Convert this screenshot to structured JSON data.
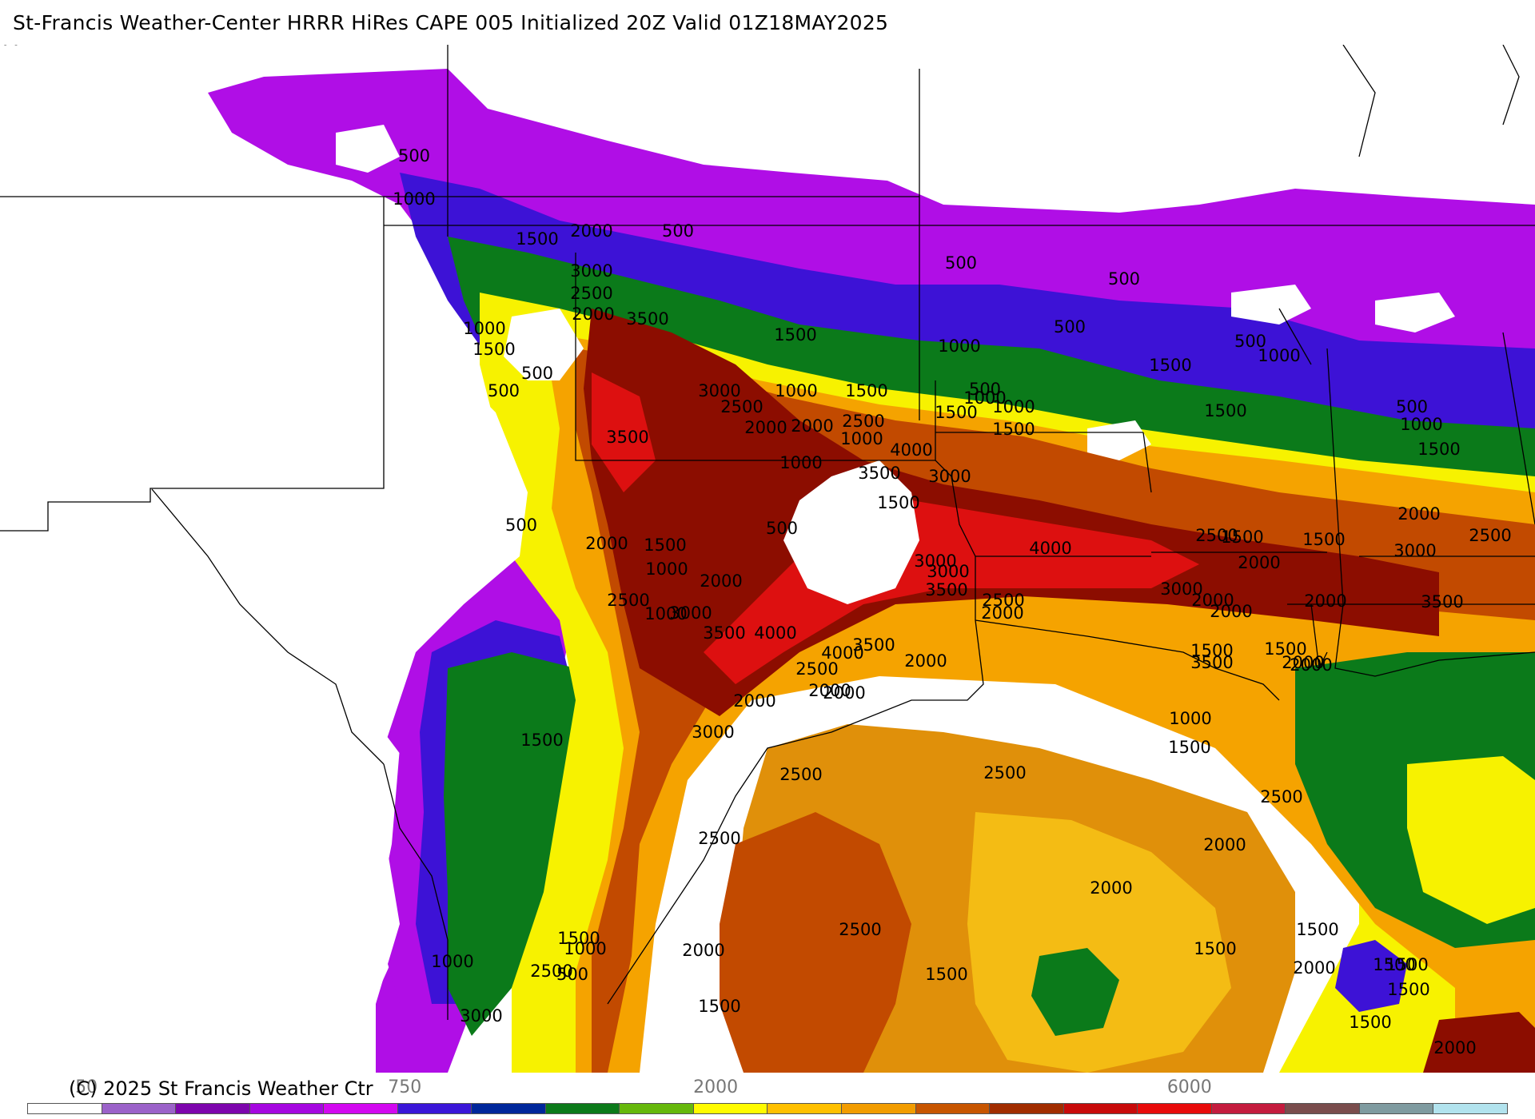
{
  "header": {
    "title": "St-Francis Weather-Center HRRR HiRes CAPE  005 Initialized  20Z Valid 01Z18MAY2025"
  },
  "footer": {
    "credit": "(C) 2025 St Francis Weather Ctr"
  },
  "colorbar": {
    "tick_labels": [
      "50",
      "750",
      "2000",
      "6000"
    ],
    "colors": [
      "#ffffff",
      "#9b62c9",
      "#7d05ad",
      "#a507e0",
      "#d208f0",
      "#3a16d8",
      "#00279b",
      "#0b7a1a",
      "#66b80c",
      "#fffb00",
      "#ffc000",
      "#f29c00",
      "#c75500",
      "#a12d00",
      "#c80a0a",
      "#e80a0a",
      "#c41c3e",
      "#7a4d4d",
      "#7f9ba0",
      "#b2e3ee"
    ]
  },
  "map": {
    "colors": {
      "c500": "#b00ee6",
      "c1000": "#3d12d6",
      "c1500": "#0b7a1a",
      "c2000": "#f7f200",
      "c2500": "#f5a300",
      "c3000": "#c24a00",
      "c3500": "#8c0d00",
      "c4000": "#dd1010",
      "ocean": "#e0900a",
      "light": "#f4bc14"
    },
    "contour_labels": [
      "500",
      "1000",
      "1500",
      "2000",
      "500",
      "3000",
      "2500",
      "2000",
      "3500",
      "1000",
      "1500",
      "500",
      "500",
      "3000",
      "2500",
      "2000",
      "2000",
      "2500",
      "1000",
      "1500",
      "1000",
      "1500",
      "500",
      "1000",
      "3500",
      "4000",
      "3500",
      "3000",
      "1500",
      "500",
      "1000",
      "1500",
      "1000",
      "500",
      "1000",
      "1500",
      "500",
      "500",
      "500",
      "1000",
      "1500",
      "1500",
      "1500",
      "1000",
      "500",
      "2000",
      "2500",
      "3000",
      "3500",
      "1500",
      "2000",
      "500",
      "2000",
      "1500",
      "1000",
      "2000",
      "2500",
      "1000",
      "3000",
      "3500",
      "4000",
      "3000",
      "3500",
      "2500",
      "2000",
      "4000",
      "3500",
      "2000",
      "3000",
      "2500",
      "2000",
      "4000",
      "2500",
      "3000",
      "2000",
      "2000",
      "3500",
      "2000",
      "3000",
      "2500",
      "2000",
      "1500",
      "1500",
      "1500",
      "1000",
      "1500",
      "2500",
      "1500",
      "2000",
      "2000",
      "2000",
      "2500",
      "2500",
      "2000",
      "2000",
      "1500",
      "1500",
      "1000",
      "2000",
      "1500",
      "1500",
      "1500",
      "1500",
      "2000",
      "1500",
      "500",
      "1000",
      "3000",
      "2500",
      "1500",
      "2000",
      "1500",
      "2500",
      "3500",
      "2500",
      "2000",
      "3000"
    ]
  }
}
